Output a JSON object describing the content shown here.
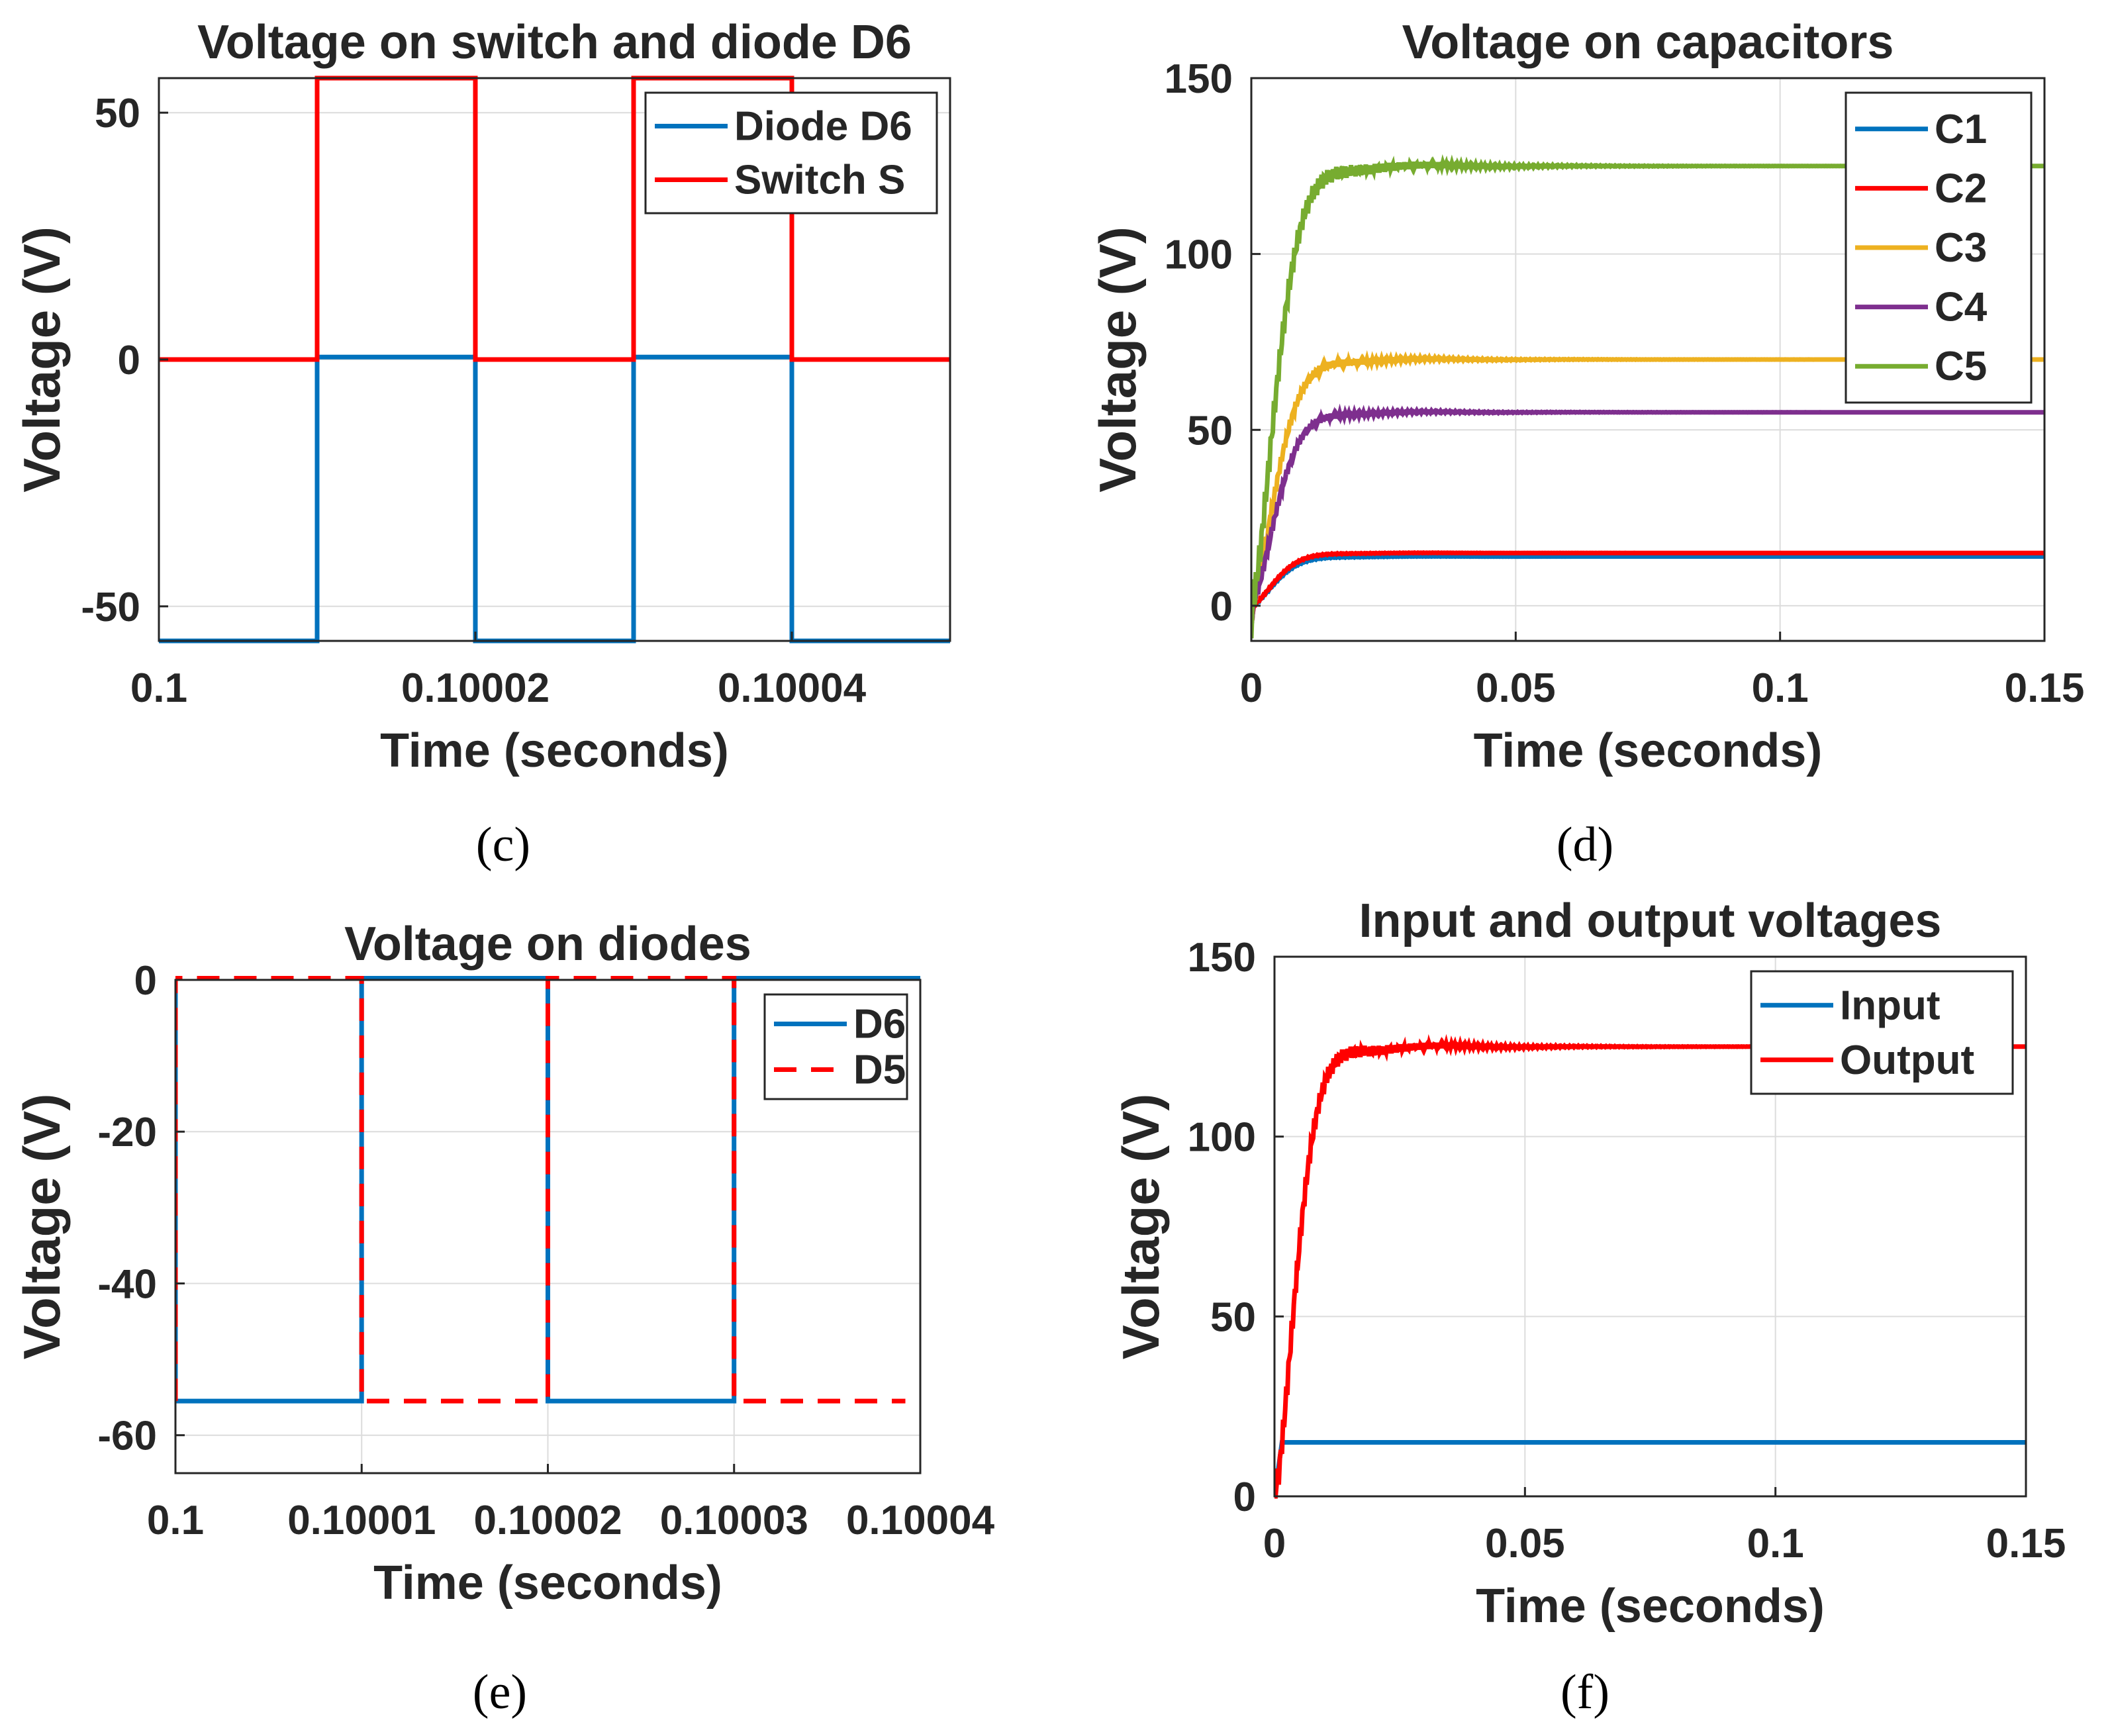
{
  "chart_data": [
    {
      "id": "c",
      "type": "line",
      "caption": "(c)",
      "title": "Voltage on switch and diode D6",
      "xlabel": "Time (seconds)",
      "ylabel": "Voltage (V)",
      "xlim": [
        0.1,
        0.10005
      ],
      "ylim": [
        -57,
        57
      ],
      "x_ticks": [
        0.1,
        0.10002,
        0.10004
      ],
      "x_tick_labels": [
        "0.1",
        "0.10002",
        "0.10004"
      ],
      "y_ticks": [
        -50,
        0,
        50
      ],
      "y_tick_labels": [
        "-50",
        "0",
        "50"
      ],
      "grid": true,
      "legend": "top-right",
      "series": [
        {
          "name": "Diode D6",
          "color": "#0072BD",
          "x": [
            0.1,
            0.10001,
            0.10001,
            0.10002,
            0.10002,
            0.10003,
            0.10003,
            0.10004,
            0.10004,
            0.10005
          ],
          "y": [
            -57,
            -57,
            0.5,
            0.5,
            -57,
            -57,
            0.5,
            0.5,
            -57,
            -57
          ]
        },
        {
          "name": "Switch S",
          "color": "#FF0000",
          "x": [
            0.1,
            0.10001,
            0.10001,
            0.10002,
            0.10002,
            0.10003,
            0.10003,
            0.10004,
            0.10004,
            0.10005
          ],
          "y": [
            0,
            0,
            57,
            57,
            0,
            0,
            57,
            57,
            0,
            0
          ]
        }
      ]
    },
    {
      "id": "d",
      "type": "line",
      "caption": "(d)",
      "title": "Voltage on capacitors",
      "xlabel": "Time (seconds)",
      "ylabel": "Voltage (V)",
      "xlim": [
        0,
        0.15
      ],
      "ylim": [
        -10,
        150
      ],
      "x_ticks": [
        0,
        0.05,
        0.1,
        0.15
      ],
      "x_tick_labels": [
        "0",
        "0.05",
        "0.1",
        "0.15"
      ],
      "y_ticks": [
        0,
        50,
        100,
        150
      ],
      "y_tick_labels": [
        "0",
        "50",
        "100",
        "150"
      ],
      "grid": true,
      "legend": "top-right",
      "series": [
        {
          "name": "C1",
          "color": "#0072BD",
          "steady": 14
        },
        {
          "name": "C2",
          "color": "#FF0000",
          "steady": 15
        },
        {
          "name": "C3",
          "color": "#EDB120",
          "steady": 70
        },
        {
          "name": "C4",
          "color": "#7E2F8E",
          "steady": 55
        },
        {
          "name": "C5",
          "color": "#77AC30",
          "steady": 125
        }
      ]
    },
    {
      "id": "e",
      "type": "line",
      "caption": "(e)",
      "title": "Voltage on diodes",
      "xlabel": "Time (seconds)",
      "ylabel": "Voltage (V)",
      "xlim": [
        0.1,
        0.10004
      ],
      "ylim": [
        -65,
        0
      ],
      "x_ticks": [
        0.1,
        0.10001,
        0.10002,
        0.10003,
        0.10004
      ],
      "x_tick_labels": [
        "0.1",
        "0.10001",
        "0.10002",
        "0.10003",
        "0.10004"
      ],
      "y_ticks": [
        -60,
        -40,
        -20,
        0
      ],
      "y_tick_labels": [
        "-60",
        "-40",
        "-20",
        "0"
      ],
      "grid": true,
      "legend": "top-right",
      "series": [
        {
          "name": "D6",
          "color": "#0072BD",
          "dash": false,
          "x": [
            0.1,
            0.1,
            0.10001,
            0.10001,
            0.10002,
            0.10002,
            0.10003,
            0.10003,
            0.10004
          ],
          "y": [
            0,
            -55.5,
            -55.5,
            0.3,
            0.3,
            -55.5,
            -55.5,
            0.3,
            0.3
          ]
        },
        {
          "name": "D5",
          "color": "#FF0000",
          "dash": true,
          "x": [
            0.1,
            0.1,
            0.10001,
            0.10001,
            0.10002,
            0.10002,
            0.10003,
            0.10003,
            0.1000392
          ],
          "y": [
            -55.5,
            0.3,
            0.3,
            -55.5,
            -55.5,
            0.3,
            0.3,
            -55.5,
            -55.5
          ]
        }
      ]
    },
    {
      "id": "f",
      "type": "line",
      "caption": "(f)",
      "title": "Input and output voltages",
      "xlabel": "Time (seconds)",
      "ylabel": "Voltage (V)",
      "xlim": [
        0,
        0.15
      ],
      "ylim": [
        0,
        150
      ],
      "x_ticks": [
        0,
        0.05,
        0.1,
        0.15
      ],
      "x_tick_labels": [
        "0",
        "0.05",
        "0.1",
        "0.15"
      ],
      "y_ticks": [
        0,
        50,
        100,
        150
      ],
      "y_tick_labels": [
        "0",
        "50",
        "100",
        "150"
      ],
      "grid": true,
      "legend": "top-right",
      "series": [
        {
          "name": "Input",
          "color": "#0072BD",
          "steady": 15
        },
        {
          "name": "Output",
          "color": "#FF0000",
          "steady": 125
        }
      ]
    }
  ]
}
